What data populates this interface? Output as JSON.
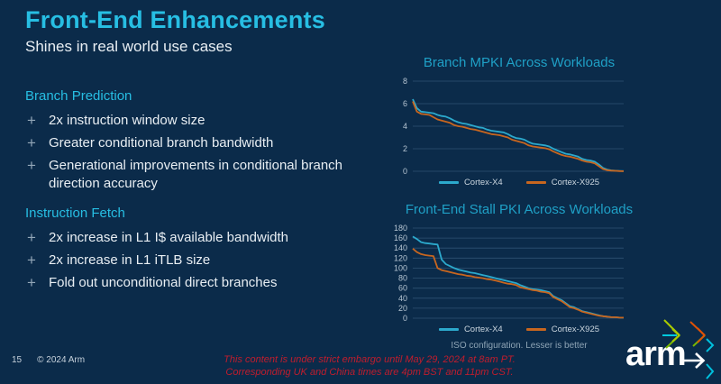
{
  "slide": {
    "title": "Front-End Enhancements",
    "subtitle": "Shines in real world use cases",
    "page_number": "15",
    "copyright": "© 2024 Arm",
    "footnote": "ISO configuration.  Lesser is better",
    "embargo_line1": "This content is under strict embargo until May 29, 2024 at 8am PT.",
    "embargo_line2": "Corresponding UK and China times are 4pm BST and 11pm CST.",
    "bullet_glyph": "+",
    "logo_text": "arm"
  },
  "sections": [
    {
      "heading": "Branch Prediction",
      "bullets": [
        "2x instruction window size",
        "Greater conditional branch bandwidth",
        "Generational improvements in conditional branch direction accuracy"
      ]
    },
    {
      "heading": "Instruction Fetch",
      "bullets": [
        "2x increase in L1 I$ available bandwidth",
        "2x increase in L1 iTLB size",
        "Fold out unconditional direct branches"
      ]
    }
  ],
  "colors": {
    "background": "#0B2B4A",
    "accent_cyan": "#27BEE3",
    "chart_title": "#1FA0C6",
    "cortex_x4": "#2CA9CC",
    "cortex_x925": "#C8661F",
    "embargo_red": "#C01D2D",
    "gridline": "#2E5273"
  },
  "chart_data": [
    {
      "type": "line",
      "title": "Branch MPKI Across Workloads",
      "xlabel": "",
      "ylabel": "",
      "x_note": "workloads sorted descending (no x tick labels)",
      "ylim": [
        0,
        8
      ],
      "yticks": [
        0,
        2,
        4,
        6,
        8
      ],
      "grid": true,
      "legend_position": "bottom",
      "series": [
        {
          "name": "Cortex-X4",
          "color": "#2CA9CC",
          "values": [
            6.4,
            5.6,
            5.3,
            5.25,
            5.2,
            5.15,
            5.0,
            4.9,
            4.85,
            4.7,
            4.5,
            4.35,
            4.25,
            4.2,
            4.1,
            4.0,
            3.9,
            3.85,
            3.7,
            3.6,
            3.55,
            3.5,
            3.45,
            3.3,
            3.1,
            2.95,
            2.9,
            2.8,
            2.6,
            2.45,
            2.4,
            2.35,
            2.3,
            2.2,
            2.0,
            1.85,
            1.7,
            1.55,
            1.5,
            1.4,
            1.3,
            1.1,
            1.0,
            0.95,
            0.85,
            0.6,
            0.3,
            0.15,
            0.08,
            0.05,
            0.03,
            0.02
          ]
        },
        {
          "name": "Cortex-X925",
          "color": "#C8661F",
          "values": [
            6.2,
            5.3,
            5.1,
            5.05,
            5.0,
            4.8,
            4.6,
            4.5,
            4.4,
            4.3,
            4.1,
            4.0,
            3.95,
            3.85,
            3.75,
            3.7,
            3.6,
            3.5,
            3.4,
            3.3,
            3.25,
            3.2,
            3.1,
            3.0,
            2.8,
            2.7,
            2.6,
            2.5,
            2.3,
            2.2,
            2.15,
            2.1,
            2.05,
            1.95,
            1.75,
            1.6,
            1.45,
            1.35,
            1.3,
            1.2,
            1.1,
            0.95,
            0.85,
            0.8,
            0.7,
            0.45,
            0.2,
            0.1,
            0.06,
            0.04,
            0.02,
            0.01
          ]
        }
      ]
    },
    {
      "type": "line",
      "title": "Front-End Stall PKI Across Workloads",
      "xlabel": "",
      "ylabel": "",
      "x_note": "workloads sorted descending (no x tick labels)",
      "ylim": [
        0,
        180
      ],
      "yticks": [
        0,
        20,
        40,
        60,
        80,
        100,
        120,
        140,
        160,
        180
      ],
      "grid": true,
      "legend_position": "bottom",
      "series": [
        {
          "name": "Cortex-X4",
          "color": "#2CA9CC",
          "values": [
            163,
            158,
            152,
            150,
            149,
            148,
            147,
            117,
            108,
            104,
            100,
            97,
            95,
            93,
            91,
            90,
            88,
            86,
            84,
            82,
            80,
            78,
            76,
            74,
            72,
            70,
            66,
            63,
            60,
            58,
            57,
            56,
            54,
            52,
            44,
            40,
            36,
            30,
            24,
            22,
            18,
            14,
            12,
            10,
            8,
            6,
            4,
            3,
            2,
            2,
            1,
            1
          ]
        },
        {
          "name": "Cortex-X925",
          "color": "#C8661F",
          "values": [
            139,
            132,
            128,
            126,
            125,
            124,
            100,
            96,
            94,
            92,
            90,
            88,
            87,
            85,
            84,
            82,
            81,
            80,
            78,
            77,
            75,
            73,
            71,
            69,
            68,
            66,
            62,
            60,
            58,
            56,
            55,
            53,
            52,
            50,
            42,
            38,
            34,
            28,
            22,
            20,
            17,
            13,
            11,
            9,
            7,
            5,
            4,
            3,
            2,
            2,
            1,
            1
          ]
        }
      ]
    }
  ]
}
